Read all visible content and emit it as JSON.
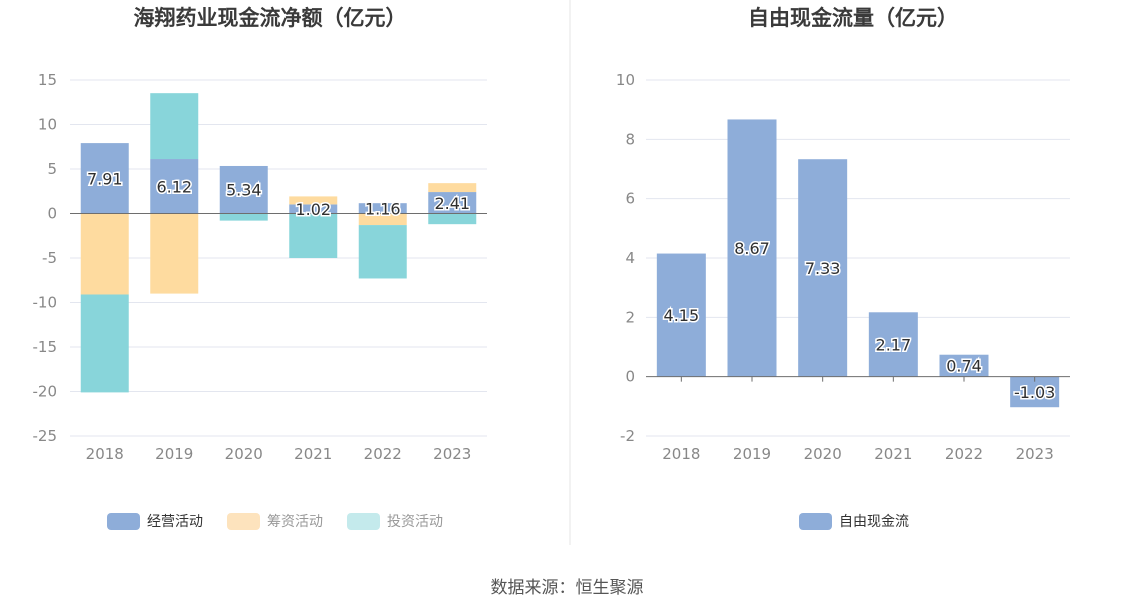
{
  "chart_data": [
    {
      "type": "bar",
      "stacked": true,
      "title": "海翔药业现金流净额（亿元）",
      "categories": [
        "2018",
        "2019",
        "2020",
        "2021",
        "2022",
        "2023"
      ],
      "ylim": [
        -25,
        15
      ],
      "yticks": [
        15,
        10,
        5,
        0,
        -5,
        -10,
        -15,
        -20,
        -25
      ],
      "grid": true,
      "legend_position": "bottom",
      "series": [
        {
          "name": "经营活动",
          "color": "#8eadd9",
          "values": [
            7.91,
            6.12,
            5.34,
            1.02,
            1.16,
            2.41
          ],
          "labels": [
            "7.91",
            "6.12",
            "5.34",
            "1.02",
            "1.16",
            "2.41"
          ]
        },
        {
          "name": "筹资活动",
          "color": "#fedb9f",
          "values": [
            -9.1,
            -9.0,
            0.0,
            0.9,
            -1.3,
            1.0
          ]
        },
        {
          "name": "投资活动",
          "color": "#88d5da",
          "values": [
            -11.0,
            7.4,
            -0.8,
            -5.0,
            -6.0,
            -1.2
          ]
        }
      ],
      "legend": [
        {
          "name": "经营活动",
          "swatch": "#8eadd9"
        },
        {
          "name": "筹资活动",
          "swatch": "#fde3bd"
        },
        {
          "name": "投资活动",
          "swatch": "#c4eaec"
        }
      ]
    },
    {
      "type": "bar",
      "title": "自由现金流量（亿元）",
      "categories": [
        "2018",
        "2019",
        "2020",
        "2021",
        "2022",
        "2023"
      ],
      "ylim": [
        -2,
        10
      ],
      "yticks": [
        10,
        8,
        6,
        4,
        2,
        0,
        -2
      ],
      "grid": true,
      "legend_position": "bottom",
      "series": [
        {
          "name": "自由现金流",
          "color": "#8eadd9",
          "values": [
            4.15,
            8.67,
            7.33,
            2.17,
            0.74,
            -1.03
          ],
          "labels": [
            "4.15",
            "8.67",
            "7.33",
            "2.17",
            "0.74",
            "-1.03"
          ]
        }
      ],
      "legend": [
        {
          "name": "自由现金流",
          "swatch": "#8eadd9"
        }
      ]
    }
  ],
  "source": "数据来源：恒生聚源"
}
